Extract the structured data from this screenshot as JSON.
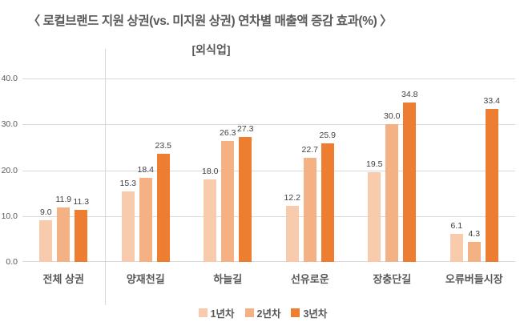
{
  "title": "〈 로컬브랜드 지원 상권(vs. 미지원 상권) 연차별 매출액 증감 효과(%) 〉",
  "subtitle": "[외식업]",
  "chart_data": {
    "type": "bar",
    "categories": [
      "전체 상권",
      "양재천길",
      "하늘길",
      "선유로운",
      "장충단길",
      "오류버들시장"
    ],
    "series": [
      {
        "name": "1년차",
        "color": "#F8CBAD",
        "values": [
          9.0,
          15.3,
          18.0,
          12.2,
          19.5,
          6.1
        ]
      },
      {
        "name": "2년차",
        "color": "#F4B183",
        "values": [
          11.9,
          18.4,
          26.3,
          22.7,
          30.0,
          4.3
        ]
      },
      {
        "name": "3년차",
        "color": "#ED7D31",
        "values": [
          11.3,
          23.5,
          27.3,
          25.9,
          34.8,
          33.4
        ]
      }
    ],
    "ylim": [
      0,
      40
    ],
    "yticks": [
      0,
      10,
      20,
      30,
      40
    ],
    "ytick_format_decimals": 1,
    "value_label_decimals": 1,
    "grid": true,
    "legend_position": "bottom",
    "separator_after_category_index": 0,
    "gridline_color": "#D9D9D9",
    "separator_color": "#D9D9D9",
    "text_color": "#595959",
    "value_label_color": "#404040"
  }
}
